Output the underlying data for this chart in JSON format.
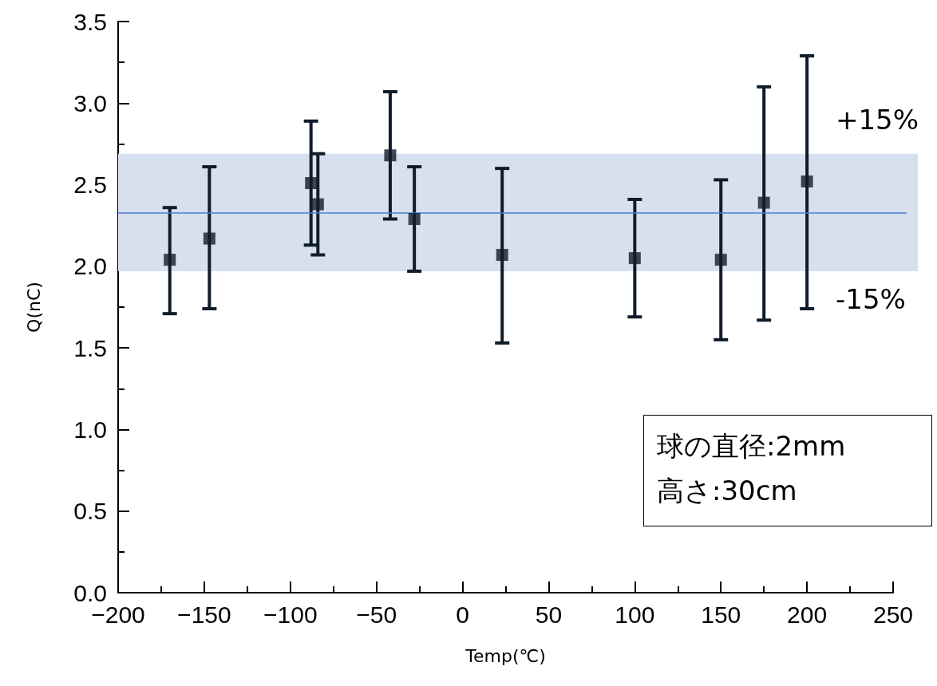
{
  "chart_data": {
    "type": "scatter",
    "xlabel": "Temp(℃)",
    "ylabel": "Q(nC)",
    "x": [
      -170,
      -147,
      -88,
      -84,
      -42,
      -28,
      23,
      100,
      150,
      175,
      200
    ],
    "series": [
      {
        "color": "#111c2b",
        "values": [
          2.04,
          2.17,
          2.51,
          2.38,
          2.68,
          2.29,
          2.07,
          2.05,
          2.04,
          2.39,
          2.52
        ],
        "errors": [
          [
            1.71,
            2.36
          ],
          [
            1.74,
            2.61
          ],
          [
            2.13,
            2.89
          ],
          [
            2.07,
            2.69
          ],
          [
            2.29,
            3.07
          ],
          [
            1.97,
            2.61
          ],
          [
            1.53,
            2.6
          ],
          [
            1.69,
            2.41
          ],
          [
            1.55,
            2.53
          ],
          [
            1.67,
            3.1
          ],
          [
            1.74,
            3.29
          ]
        ]
      }
    ],
    "marker": "square",
    "xlim": [
      -200,
      250
    ],
    "xticks": [
      {
        "value": -200,
        "label": "−200"
      },
      {
        "value": -150,
        "label": "−150"
      },
      {
        "value": -100,
        "label": "−100"
      },
      {
        "value": -50,
        "label": "−50"
      },
      0,
      50,
      100,
      150,
      200,
      250
    ],
    "ylim": [
      0,
      3.5
    ],
    "yticks": [
      {
        "value": 0,
        "label": "0.0"
      },
      0.5,
      {
        "value": 1,
        "label": "1.0"
      },
      1.5,
      {
        "value": 2,
        "label": "2.0"
      },
      2.5,
      {
        "value": 3,
        "label": "3.0"
      },
      3.5
    ],
    "ref_lines": [
      {
        "axis": "y",
        "value": 2.33,
        "color": "#4a7fd0"
      }
    ],
    "bands": [
      {
        "axis": "y",
        "from": 1.97,
        "to": 2.69,
        "color": "#d6e0ee"
      }
    ],
    "annotations": [
      {
        "text": "+15%",
        "x": 250,
        "y": 2.69
      },
      {
        "text": "-15%",
        "x": 250,
        "y": 1.97
      },
      "球の直径:2mm",
      "高さ:30cm"
    ]
  }
}
